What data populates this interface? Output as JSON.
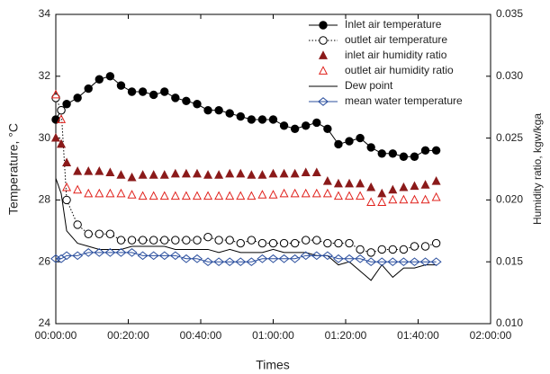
{
  "chart_data": {
    "type": "line",
    "x_label": "Times",
    "y_label": "Temperature, °C",
    "y2_label": "Humidity ratio, kgw/kga",
    "xlim": [
      0,
      120
    ],
    "xticks": [
      {
        "value": 0,
        "label": "00:00:00"
      },
      {
        "value": 20,
        "label": "00:20:00"
      },
      {
        "value": 40,
        "label": "00:40:00"
      },
      {
        "value": 60,
        "label": "01:00:00"
      },
      {
        "value": 80,
        "label": "01:20:00"
      },
      {
        "value": 100,
        "label": "01:40:00"
      },
      {
        "value": 120,
        "label": "02:00:00"
      }
    ],
    "ylim": [
      24,
      34
    ],
    "yticks": [
      24,
      26,
      28,
      30,
      32,
      34
    ],
    "y2lim": [
      0.01,
      0.035
    ],
    "y2ticks": [
      {
        "value": 0.01,
        "label": "0.010"
      },
      0.015,
      {
        "value": 0.02,
        "label": "0.020"
      },
      0.025,
      {
        "value": 0.03,
        "label": "0.030"
      },
      0.035
    ],
    "legend": "upper right",
    "x": [
      0,
      1.5,
      3,
      6,
      9,
      12,
      15,
      18,
      21,
      24,
      27,
      30,
      33,
      36,
      39,
      42,
      45,
      48,
      51,
      54,
      57,
      60,
      63,
      66,
      69,
      72,
      75,
      78,
      81,
      84,
      87,
      90,
      93,
      96,
      99,
      102,
      105
    ],
    "series": [
      {
        "name": "Inlet air temperature",
        "color": "#000000",
        "line": "solid",
        "marker": "circle-filled",
        "values": [
          30.6,
          30.9,
          31.1,
          31.3,
          31.6,
          31.9,
          32.0,
          31.7,
          31.5,
          31.5,
          31.4,
          31.5,
          31.3,
          31.2,
          31.1,
          30.9,
          30.9,
          30.8,
          30.7,
          30.6,
          30.6,
          30.6,
          30.4,
          30.3,
          30.4,
          30.5,
          30.3,
          29.8,
          29.9,
          30.0,
          29.7,
          29.5,
          29.5,
          29.4,
          29.4,
          29.6,
          29.6
        ]
      },
      {
        "name": "outlet air temperature",
        "color": "#000000",
        "line": "dotted",
        "marker": "circle-open",
        "values": [
          31.3,
          30.9,
          28.0,
          27.2,
          26.9,
          26.9,
          26.9,
          26.7,
          26.7,
          26.7,
          26.7,
          26.7,
          26.7,
          26.7,
          26.7,
          26.8,
          26.7,
          26.7,
          26.6,
          26.7,
          26.6,
          26.6,
          26.6,
          26.6,
          26.7,
          26.7,
          26.6,
          26.6,
          26.6,
          26.4,
          26.3,
          26.4,
          26.4,
          26.4,
          26.5,
          26.5,
          26.6
        ]
      },
      {
        "name": "inlet air humidity ratio",
        "color": "#8b1a1a",
        "line": "none",
        "marker": "triangle-filled",
        "axis": "y2",
        "values": [
          0.025,
          0.0245,
          0.023,
          0.0223,
          0.0223,
          0.0223,
          0.0222,
          0.022,
          0.0218,
          0.022,
          0.022,
          0.022,
          0.0221,
          0.0221,
          0.0221,
          0.022,
          0.022,
          0.0221,
          0.0221,
          0.022,
          0.022,
          0.0221,
          0.0221,
          0.0221,
          0.0222,
          0.0222,
          0.0215,
          0.0213,
          0.0213,
          0.0213,
          0.021,
          0.0205,
          0.0208,
          0.021,
          0.0211,
          0.0212,
          0.0215
        ]
      },
      {
        "name": "outlet air humidity ratio",
        "color": "#e0201b",
        "line": "none",
        "marker": "triangle-open",
        "axis": "y2",
        "values": [
          0.0285,
          0.0265,
          0.021,
          0.0208,
          0.0205,
          0.0205,
          0.0205,
          0.0205,
          0.0204,
          0.0203,
          0.0203,
          0.0203,
          0.0203,
          0.0203,
          0.0203,
          0.0203,
          0.0203,
          0.0203,
          0.0203,
          0.0203,
          0.0204,
          0.0204,
          0.0205,
          0.0205,
          0.0205,
          0.0205,
          0.0205,
          0.0203,
          0.0203,
          0.0203,
          0.0198,
          0.0198,
          0.02,
          0.02,
          0.02,
          0.02,
          0.0202
        ]
      },
      {
        "name": "Dew point",
        "color": "#000000",
        "line": "solid",
        "marker": "none",
        "values": [
          28.7,
          28.2,
          27.0,
          26.6,
          26.5,
          26.4,
          26.4,
          26.4,
          26.5,
          26.5,
          26.5,
          26.5,
          26.4,
          26.4,
          26.4,
          26.4,
          26.3,
          26.4,
          26.3,
          26.3,
          26.3,
          26.4,
          26.3,
          26.3,
          26.3,
          26.2,
          26.2,
          25.9,
          26.0,
          25.7,
          25.4,
          25.9,
          25.5,
          25.8,
          25.8,
          25.9,
          25.9
        ]
      },
      {
        "name": "mean water temperature",
        "color": "#2b4f9e",
        "line": "solid",
        "marker": "diamond-open",
        "values": [
          26.1,
          26.1,
          26.2,
          26.2,
          26.3,
          26.3,
          26.3,
          26.3,
          26.3,
          26.2,
          26.2,
          26.2,
          26.2,
          26.1,
          26.1,
          26.0,
          26.0,
          26.0,
          26.0,
          26.0,
          26.1,
          26.1,
          26.1,
          26.1,
          26.2,
          26.2,
          26.2,
          26.1,
          26.1,
          26.1,
          26.0,
          26.0,
          26.0,
          26.0,
          26.0,
          26.0,
          26.0
        ]
      }
    ]
  }
}
